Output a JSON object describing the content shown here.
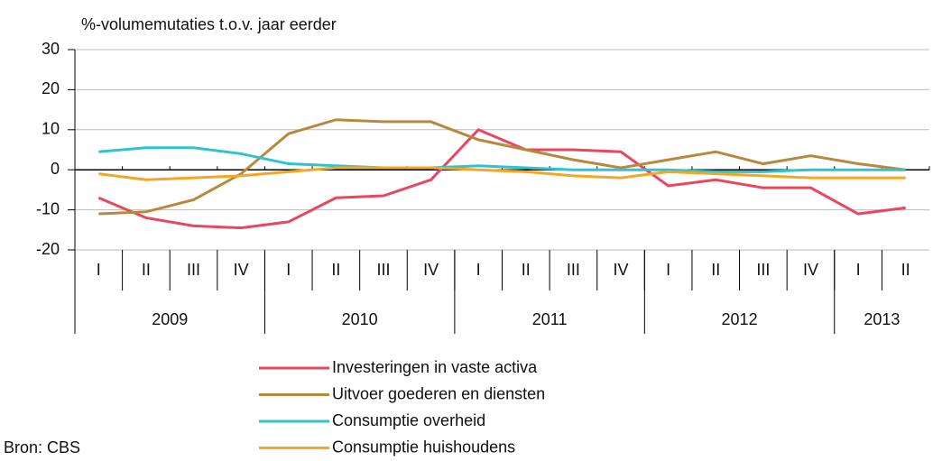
{
  "chart_data": {
    "type": "line",
    "title": "%-volumemutaties t.o.v. jaar eerder",
    "source": "Bron: CBS",
    "categories": [
      "I",
      "II",
      "III",
      "IV",
      "I",
      "II",
      "III",
      "IV",
      "I",
      "II",
      "III",
      "IV",
      "I",
      "II",
      "III",
      "IV",
      "I",
      "II"
    ],
    "groups": [
      {
        "label": "2009",
        "count": 4
      },
      {
        "label": "2010",
        "count": 4
      },
      {
        "label": "2011",
        "count": 4
      },
      {
        "label": "2012",
        "count": 4
      },
      {
        "label": "2013",
        "count": 2
      }
    ],
    "ylim": [
      -20,
      30
    ],
    "yticks": [
      -20,
      -10,
      0,
      10,
      20,
      30
    ],
    "grid": true,
    "series": [
      {
        "name": "Investeringen in vaste activa",
        "color": "#e8475f",
        "values": [
          -7,
          -12,
          -14,
          -14.5,
          -13,
          -7,
          -6.5,
          -2.5,
          10,
          5,
          5,
          4.5,
          -4,
          -2.5,
          -4.5,
          -4.5,
          -11,
          -9.5
        ]
      },
      {
        "name": "Uitvoer goederen en diensten",
        "color": "#b9883f",
        "values": [
          -11,
          -10.5,
          -7.5,
          -1,
          9,
          12.5,
          12,
          12,
          7.5,
          5,
          2.5,
          0.5,
          2.5,
          4.5,
          1.5,
          3.5,
          1.5,
          0
        ]
      },
      {
        "name": "Consumptie overheid",
        "color": "#2fc3d0",
        "values": [
          4.5,
          5.5,
          5.5,
          4,
          1.5,
          1,
          0.5,
          0.5,
          1,
          0.5,
          0,
          0,
          0,
          -0.5,
          -0.5,
          0,
          0,
          0
        ]
      },
      {
        "name": "Consumptie huishoudens",
        "color": "#f5a623",
        "values": [
          -1,
          -2.5,
          -2,
          -1.5,
          -0.5,
          0.5,
          0.5,
          0.5,
          0,
          -0.5,
          -1.5,
          -2,
          -0.5,
          -1,
          -1.5,
          -2,
          -2,
          -2
        ]
      }
    ]
  }
}
